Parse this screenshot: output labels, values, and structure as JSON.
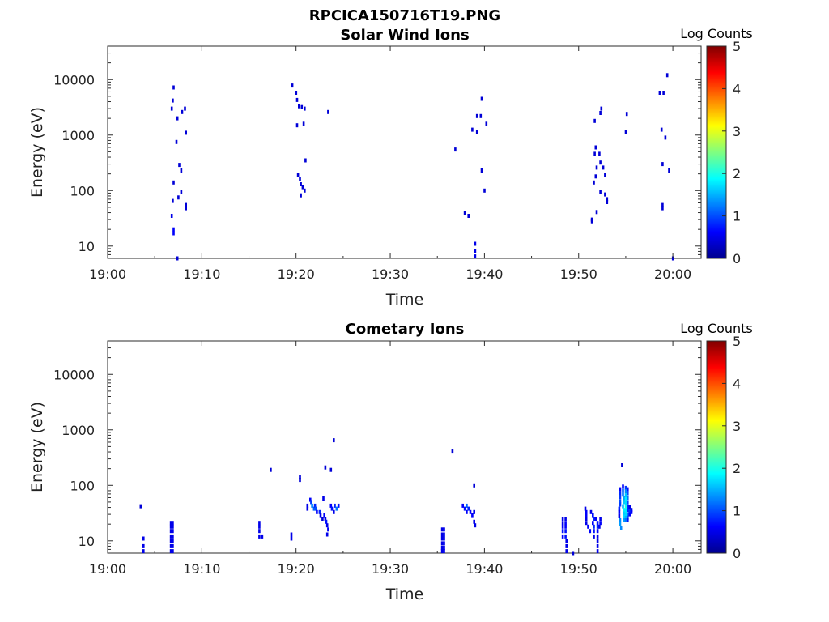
{
  "figure_title": "RPCICA150716T19.PNG",
  "chart_data": [
    {
      "type": "heatmap",
      "title": "Solar Wind Ions",
      "xlabel": "Time",
      "ylabel": "Energy (eV)",
      "yscale": "log",
      "x_ticks": [
        "19:00",
        "19:10",
        "19:20",
        "19:30",
        "19:40",
        "19:50",
        "20:00"
      ],
      "xlim_minutes": [
        0,
        63
      ],
      "ylim": [
        6,
        40000
      ],
      "y_ticks": [
        "10",
        "100",
        "1000",
        "10000"
      ],
      "grid": false,
      "colorbar": {
        "label": "Log Counts",
        "ticks": [
          "0",
          "1",
          "2",
          "3",
          "4",
          "5"
        ],
        "range": [
          0,
          5
        ]
      },
      "cells": [
        [
          7.0,
          7200,
          0.4
        ],
        [
          6.9,
          4200,
          0.4
        ],
        [
          6.8,
          3000,
          0.4
        ],
        [
          7.4,
          2000,
          0.4
        ],
        [
          7.9,
          2600,
          0.4
        ],
        [
          8.2,
          3000,
          0.4
        ],
        [
          8.3,
          1100,
          0.4
        ],
        [
          7.3,
          750,
          0.4
        ],
        [
          7.6,
          290,
          0.4
        ],
        [
          7.8,
          230,
          0.4
        ],
        [
          7.0,
          140,
          0.4
        ],
        [
          7.8,
          95,
          0.4
        ],
        [
          7.5,
          75,
          0.4
        ],
        [
          6.9,
          65,
          0.4
        ],
        [
          8.3,
          55,
          0.4
        ],
        [
          8.3,
          48,
          0.4
        ],
        [
          6.8,
          35,
          0.5
        ],
        [
          7.0,
          20,
          0.6
        ],
        [
          7.0,
          17,
          0.6
        ],
        [
          7.4,
          6,
          0.4
        ],
        [
          19.6,
          7800,
          0.4
        ],
        [
          20.0,
          5800,
          0.4
        ],
        [
          20.1,
          4300,
          0.4
        ],
        [
          20.3,
          3300,
          0.4
        ],
        [
          20.6,
          3200,
          0.4
        ],
        [
          20.9,
          3000,
          0.4
        ],
        [
          23.4,
          2600,
          0.4
        ],
        [
          20.8,
          1600,
          0.4
        ],
        [
          20.1,
          1500,
          0.4
        ],
        [
          21.0,
          350,
          0.4
        ],
        [
          20.2,
          190,
          0.4
        ],
        [
          20.4,
          160,
          0.4
        ],
        [
          20.5,
          130,
          0.4
        ],
        [
          20.7,
          115,
          0.4
        ],
        [
          20.9,
          100,
          0.4
        ],
        [
          20.5,
          82,
          0.4
        ],
        [
          39.7,
          4500,
          0.4
        ],
        [
          39.2,
          2200,
          0.4
        ],
        [
          39.6,
          2200,
          0.4
        ],
        [
          40.2,
          1600,
          0.4
        ],
        [
          38.7,
          1250,
          0.4
        ],
        [
          39.2,
          1150,
          0.4
        ],
        [
          36.9,
          550,
          0.4
        ],
        [
          39.7,
          230,
          0.4
        ],
        [
          40.0,
          100,
          0.4
        ],
        [
          37.9,
          40,
          0.4
        ],
        [
          38.3,
          35,
          0.4
        ],
        [
          39.0,
          11,
          0.5
        ],
        [
          39.0,
          8,
          0.5
        ],
        [
          39.0,
          6.5,
          0.5
        ],
        [
          52.4,
          3000,
          0.4
        ],
        [
          52.3,
          2500,
          0.4
        ],
        [
          55.1,
          2400,
          0.4
        ],
        [
          51.7,
          1800,
          0.4
        ],
        [
          55.0,
          1150,
          0.4
        ],
        [
          51.8,
          600,
          0.4
        ],
        [
          51.7,
          460,
          0.4
        ],
        [
          52.2,
          460,
          0.4
        ],
        [
          52.3,
          320,
          0.4
        ],
        [
          51.9,
          260,
          0.4
        ],
        [
          52.6,
          260,
          0.4
        ],
        [
          52.8,
          190,
          0.4
        ],
        [
          51.8,
          180,
          0.4
        ],
        [
          51.6,
          140,
          0.4
        ],
        [
          52.3,
          95,
          0.4
        ],
        [
          52.8,
          85,
          0.4
        ],
        [
          53.0,
          70,
          0.4
        ],
        [
          53.0,
          62,
          0.4
        ],
        [
          51.9,
          41,
          0.4
        ],
        [
          51.4,
          30,
          0.4
        ],
        [
          51.4,
          28,
          0.4
        ],
        [
          59.4,
          12000,
          0.4
        ],
        [
          58.6,
          5800,
          0.4
        ],
        [
          59.0,
          5800,
          0.4
        ],
        [
          58.8,
          1250,
          0.4
        ],
        [
          59.2,
          900,
          0.4
        ],
        [
          58.9,
          300,
          0.4
        ],
        [
          59.6,
          230,
          0.4
        ],
        [
          58.9,
          55,
          0.4
        ],
        [
          58.9,
          48,
          0.4
        ],
        [
          60.0,
          6,
          0.4
        ]
      ]
    },
    {
      "type": "heatmap",
      "title": "Cometary Ions",
      "xlabel": "Time",
      "ylabel": "Energy (eV)",
      "yscale": "log",
      "x_ticks": [
        "19:00",
        "19:10",
        "19:20",
        "19:30",
        "19:40",
        "19:50",
        "20:00"
      ],
      "xlim_minutes": [
        0,
        63
      ],
      "ylim": [
        6,
        40000
      ],
      "y_ticks": [
        "10",
        "100",
        "1000",
        "10000"
      ],
      "grid": false,
      "colorbar": {
        "label": "Log Counts",
        "ticks": [
          "0",
          "1",
          "2",
          "3",
          "4",
          "5"
        ],
        "range": [
          0,
          5
        ]
      },
      "cells": [
        [
          3.5,
          42,
          0.4
        ],
        [
          3.8,
          11,
          0.5
        ],
        [
          3.8,
          8,
          0.5
        ],
        [
          3.8,
          6.5,
          0.5
        ],
        [
          6.7,
          21,
          0.5
        ],
        [
          6.7,
          18,
          0.5
        ],
        [
          6.7,
          15,
          0.5
        ],
        [
          6.7,
          12,
          0.5
        ],
        [
          6.7,
          10,
          0.5
        ],
        [
          6.7,
          8,
          0.5
        ],
        [
          6.7,
          6.5,
          0.5
        ],
        [
          6.9,
          21,
          0.5
        ],
        [
          6.9,
          18,
          0.5
        ],
        [
          6.9,
          15,
          0.5
        ],
        [
          6.9,
          12,
          0.5
        ],
        [
          6.9,
          10,
          0.5
        ],
        [
          6.9,
          8,
          0.5
        ],
        [
          6.9,
          6.5,
          0.5
        ],
        [
          16.1,
          21,
          0.5
        ],
        [
          16.1,
          18,
          0.5
        ],
        [
          16.1,
          15,
          0.5
        ],
        [
          16.1,
          12,
          0.5
        ],
        [
          16.4,
          12,
          0.5
        ],
        [
          17.3,
          190,
          0.4
        ],
        [
          19.5,
          13,
          0.5
        ],
        [
          19.5,
          11,
          0.5
        ],
        [
          20.4,
          140,
          0.4
        ],
        [
          20.4,
          125,
          0.4
        ],
        [
          23.1,
          210,
          0.4
        ],
        [
          23.7,
          190,
          0.4
        ],
        [
          24.0,
          650,
          0.4
        ],
        [
          21.2,
          43,
          0.5
        ],
        [
          21.2,
          38,
          0.5
        ],
        [
          21.5,
          55,
          0.6
        ],
        [
          21.6,
          50,
          0.9
        ],
        [
          21.7,
          43,
          1.3
        ],
        [
          21.9,
          38,
          1.1
        ],
        [
          22.0,
          43,
          0.8
        ],
        [
          22.1,
          38,
          1.0
        ],
        [
          22.2,
          33,
          0.6
        ],
        [
          22.5,
          33,
          0.8
        ],
        [
          22.6,
          29,
          0.5
        ],
        [
          22.8,
          25,
          0.4
        ],
        [
          22.9,
          58,
          0.5
        ],
        [
          23.0,
          29,
          0.6
        ],
        [
          23.1,
          25,
          0.5
        ],
        [
          23.2,
          22,
          0.7
        ],
        [
          23.3,
          19,
          0.5
        ],
        [
          23.4,
          16,
          0.6
        ],
        [
          23.3,
          13,
          0.5
        ],
        [
          23.7,
          43,
          0.6
        ],
        [
          23.8,
          38,
          0.7
        ],
        [
          24.0,
          33,
          0.5
        ],
        [
          24.1,
          43,
          0.8
        ],
        [
          24.3,
          38,
          1.2
        ],
        [
          24.5,
          43,
          0.7
        ],
        [
          36.6,
          420,
          0.4
        ],
        [
          38.9,
          100,
          0.4
        ],
        [
          35.5,
          16,
          0.5
        ],
        [
          35.5,
          13,
          0.5
        ],
        [
          35.5,
          11,
          0.5
        ],
        [
          35.5,
          9,
          0.5
        ],
        [
          35.5,
          7.5,
          0.5
        ],
        [
          35.5,
          6.5,
          0.5
        ],
        [
          35.7,
          16,
          0.5
        ],
        [
          35.7,
          13,
          0.5
        ],
        [
          35.7,
          11,
          0.5
        ],
        [
          35.7,
          9,
          0.5
        ],
        [
          35.7,
          7.5,
          0.5
        ],
        [
          35.7,
          6.5,
          0.5
        ],
        [
          37.7,
          43,
          0.6
        ],
        [
          37.9,
          38,
          0.7
        ],
        [
          38.1,
          43,
          1.1
        ],
        [
          38.1,
          33,
          0.6
        ],
        [
          38.3,
          38,
          0.8
        ],
        [
          38.5,
          33,
          0.6
        ],
        [
          38.7,
          29,
          0.6
        ],
        [
          38.9,
          33,
          0.5
        ],
        [
          38.9,
          22,
          0.5
        ],
        [
          39.0,
          19,
          0.5
        ],
        [
          48.3,
          25,
          0.5
        ],
        [
          48.3,
          21,
          0.5
        ],
        [
          48.3,
          18,
          0.6
        ],
        [
          48.3,
          15,
          0.7
        ],
        [
          48.3,
          12,
          0.6
        ],
        [
          48.6,
          25,
          0.5
        ],
        [
          48.6,
          21,
          0.6
        ],
        [
          48.6,
          18,
          0.6
        ],
        [
          48.6,
          15,
          0.7
        ],
        [
          48.6,
          12,
          0.7
        ],
        [
          48.7,
          10,
          0.5
        ],
        [
          48.7,
          8,
          0.5
        ],
        [
          48.7,
          6.5,
          0.5
        ],
        [
          49.4,
          6,
          0.4
        ],
        [
          50.7,
          38,
          0.5
        ],
        [
          50.8,
          33,
          0.6
        ],
        [
          50.8,
          29,
          0.6
        ],
        [
          50.8,
          25,
          0.5
        ],
        [
          50.8,
          21,
          0.5
        ],
        [
          51.0,
          18,
          0.6
        ],
        [
          51.2,
          15,
          0.6
        ],
        [
          51.3,
          33,
          0.5
        ],
        [
          51.5,
          29,
          0.7
        ],
        [
          51.6,
          25,
          0.8
        ],
        [
          51.5,
          21,
          0.6
        ],
        [
          51.6,
          18,
          0.8
        ],
        [
          51.6,
          15,
          0.7
        ],
        [
          51.6,
          12,
          0.5
        ],
        [
          51.8,
          25,
          0.6
        ],
        [
          52.0,
          21,
          0.7
        ],
        [
          52.0,
          18,
          0.8
        ],
        [
          52.0,
          15,
          0.6
        ],
        [
          52.0,
          12,
          0.5
        ],
        [
          52.0,
          10,
          0.5
        ],
        [
          52.0,
          8,
          0.5
        ],
        [
          52.0,
          6.5,
          0.5
        ],
        [
          52.3,
          25,
          0.5
        ],
        [
          52.3,
          21,
          0.6
        ],
        [
          52.2,
          18,
          0.5
        ],
        [
          54.6,
          230,
          0.4
        ],
        [
          54.4,
          85,
          0.6
        ],
        [
          54.4,
          72,
          0.8
        ],
        [
          54.4,
          62,
          0.9
        ],
        [
          54.4,
          52,
          1.0
        ],
        [
          54.4,
          45,
          0.9
        ],
        [
          54.3,
          38,
          0.8
        ],
        [
          54.3,
          33,
          0.6
        ],
        [
          54.3,
          28,
          0.5
        ],
        [
          54.4,
          24,
          1.3
        ],
        [
          54.4,
          20,
          1.4
        ],
        [
          54.5,
          17,
          1.3
        ],
        [
          54.7,
          95,
          0.6
        ],
        [
          54.7,
          80,
          1.1
        ],
        [
          54.7,
          68,
          1.2
        ],
        [
          54.8,
          58,
          1.4
        ],
        [
          54.8,
          50,
          1.6
        ],
        [
          54.7,
          42,
          1.5
        ],
        [
          54.8,
          36,
          1.8
        ],
        [
          54.8,
          31,
          1.6
        ],
        [
          54.8,
          27,
          1.7
        ],
        [
          54.8,
          24,
          1.4
        ],
        [
          55.0,
          90,
          0.9
        ],
        [
          55.0,
          78,
          1.3
        ],
        [
          55.0,
          66,
          1.6
        ],
        [
          55.0,
          56,
          1.8
        ],
        [
          55.0,
          48,
          1.7
        ],
        [
          55.0,
          41,
          2.0
        ],
        [
          55.0,
          35,
          1.8
        ],
        [
          55.0,
          30,
          1.7
        ],
        [
          55.0,
          26,
          1.5
        ],
        [
          55.0,
          24,
          1.2
        ],
        [
          55.2,
          85,
          0.7
        ],
        [
          55.2,
          72,
          1.0
        ],
        [
          55.2,
          60,
          1.2
        ],
        [
          55.2,
          50,
          1.0
        ],
        [
          55.2,
          42,
          0.8
        ],
        [
          55.2,
          36,
          0.8
        ],
        [
          55.2,
          30,
          1.2
        ],
        [
          55.2,
          26,
          1.0
        ],
        [
          55.2,
          24,
          0.7
        ],
        [
          55.4,
          40,
          0.5
        ],
        [
          55.4,
          35,
          0.9
        ],
        [
          55.4,
          30,
          0.6
        ],
        [
          55.6,
          36,
          0.5
        ],
        [
          55.6,
          33,
          0.6
        ]
      ]
    }
  ]
}
